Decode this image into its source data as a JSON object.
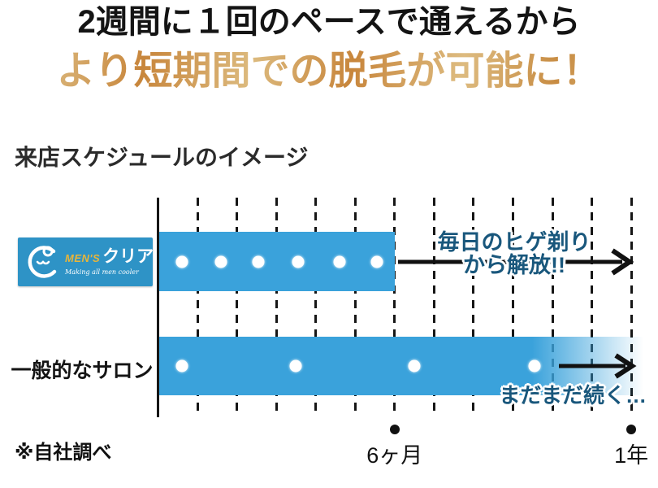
{
  "page": {
    "headline_line1": "2週間に１回のペースで通えるから",
    "headline_line2": "より短期間での脱毛が可能に！",
    "section_title": "来店スケジュールのイメージ",
    "footnote": "※自社調べ"
  },
  "logo": {
    "brand_prefix": "MEN'S",
    "brand_name": "クリア",
    "tagline": "Making all men cooler"
  },
  "colors": {
    "bar_blue": "#3aa2db",
    "logo_blue": "#2e93c6",
    "annotation_blue": "#19577c",
    "gold_light": "#ddbb80",
    "gold_dark": "#c8863c",
    "line_black": "#161616"
  },
  "chart_data": {
    "type": "timeline-gantt",
    "title": "来店スケジュールのイメージ",
    "x_axis": {
      "unit": "months",
      "range": [
        0,
        12
      ],
      "gridline_months": [
        1,
        2,
        3,
        4,
        5,
        6,
        7,
        8,
        9,
        10,
        11,
        12
      ],
      "ticks": [
        {
          "month": 6,
          "label": "6ヶ月"
        },
        {
          "month": 12,
          "label": "1年"
        }
      ]
    },
    "rows": [
      {
        "name": "メンズクリア (MEN'S クリア)",
        "bar_start_month": 0,
        "bar_end_month": 6,
        "bar_fades_out": false,
        "visit_dot_months": [
          0.6,
          1.6,
          2.55,
          3.55,
          4.6,
          5.55
        ],
        "annotation_line1": "毎日のヒゲ剃り",
        "annotation_line2": "から解放!!",
        "arrow": {
          "from_month": 6.1,
          "to_month": 12.0
        }
      },
      {
        "name": "一般的なサロン",
        "bar_start_month": 0,
        "bar_end_month": 12.3,
        "bar_fades_out": true,
        "visit_dot_months": [
          0.6,
          3.5,
          6.5,
          9.55
        ],
        "annotation_line1": "まだまだ続く…",
        "annotation_line2": "",
        "arrow": {
          "from_month": 10.2,
          "to_month": 12.0
        }
      }
    ]
  }
}
